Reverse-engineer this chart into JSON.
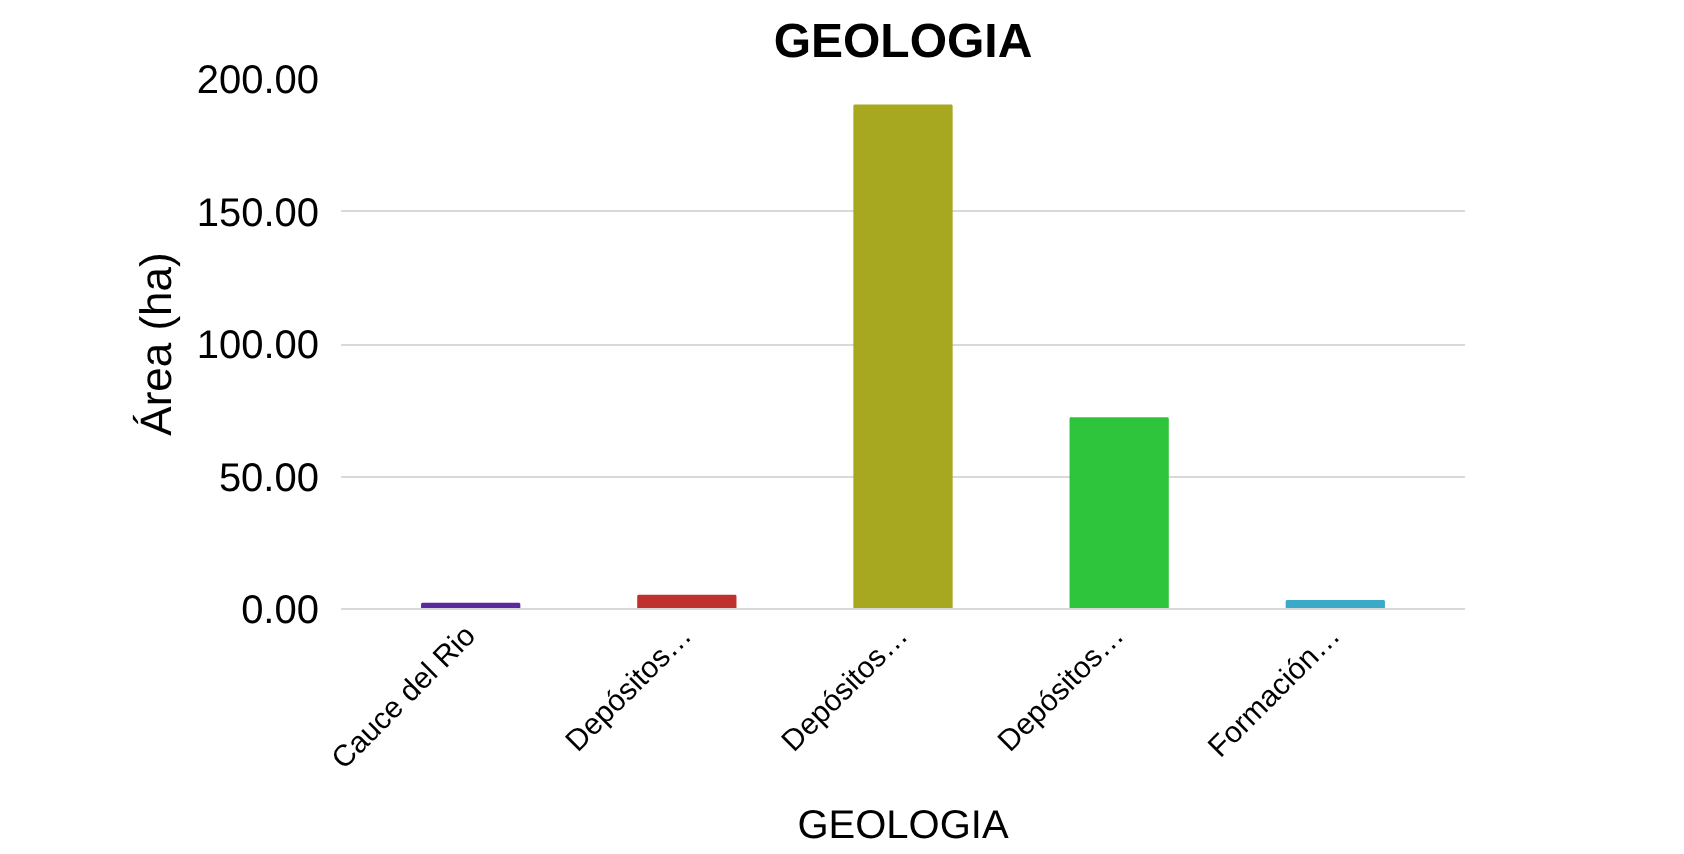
{
  "chart_data": {
    "type": "bar",
    "title": "GEOLOGIA",
    "xlabel": "GEOLOGIA",
    "ylabel": "Área (ha)",
    "categories": [
      "Cauce del Rio",
      "Depósitos…",
      "Depósitos…",
      "Depósitos…",
      "Formación…"
    ],
    "values": [
      2,
      5,
      190,
      72,
      3
    ],
    "colors": [
      "#5b2a9e",
      "#c0302c",
      "#a8a820",
      "#2ec43c",
      "#3aaac8"
    ],
    "ylim": [
      0,
      200
    ],
    "yticks": [
      {
        "value": 0,
        "label": "0.00"
      },
      {
        "value": 50,
        "label": "50.00"
      },
      {
        "value": 100,
        "label": "100.00"
      },
      {
        "value": 150,
        "label": "150.00"
      },
      {
        "value": 200,
        "label": "200.00"
      }
    ],
    "grid": "y"
  }
}
